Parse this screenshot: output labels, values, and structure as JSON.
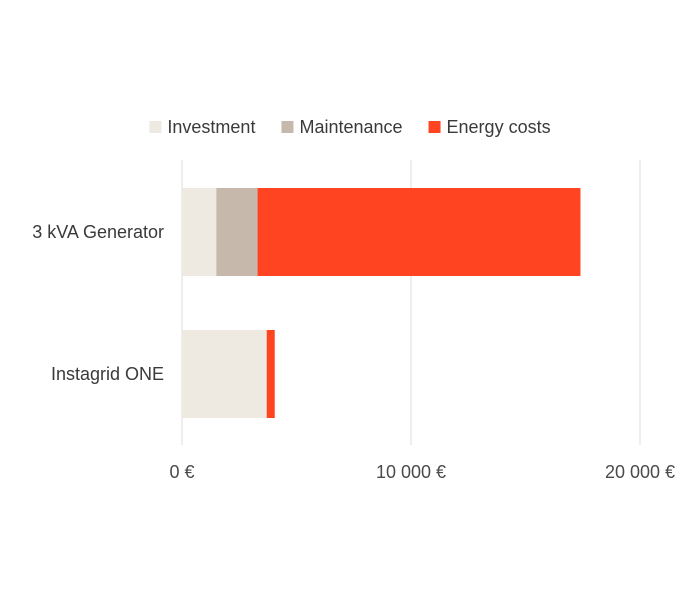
{
  "chart_data": {
    "type": "bar",
    "orientation": "horizontal",
    "stacked": true,
    "title": "",
    "xlabel": "",
    "ylabel": "",
    "categories": [
      "3 kVA Generator",
      "Instagrid ONE"
    ],
    "series": [
      {
        "name": "Investment",
        "color": "#eeeae2",
        "values": [
          1500,
          3700
        ]
      },
      {
        "name": "Maintenance",
        "color": "#c6b8ab",
        "values": [
          1800,
          0
        ]
      },
      {
        "name": "Energy costs",
        "color": "#ff4422",
        "values": [
          14100,
          350
        ]
      }
    ],
    "xlim": [
      0,
      20000
    ],
    "xticks": [
      0,
      10000,
      20000
    ],
    "xtick_labels": [
      "0 €",
      "10 000 €",
      "20 000 €"
    ],
    "grid": "vertical",
    "legend": "top-center"
  }
}
